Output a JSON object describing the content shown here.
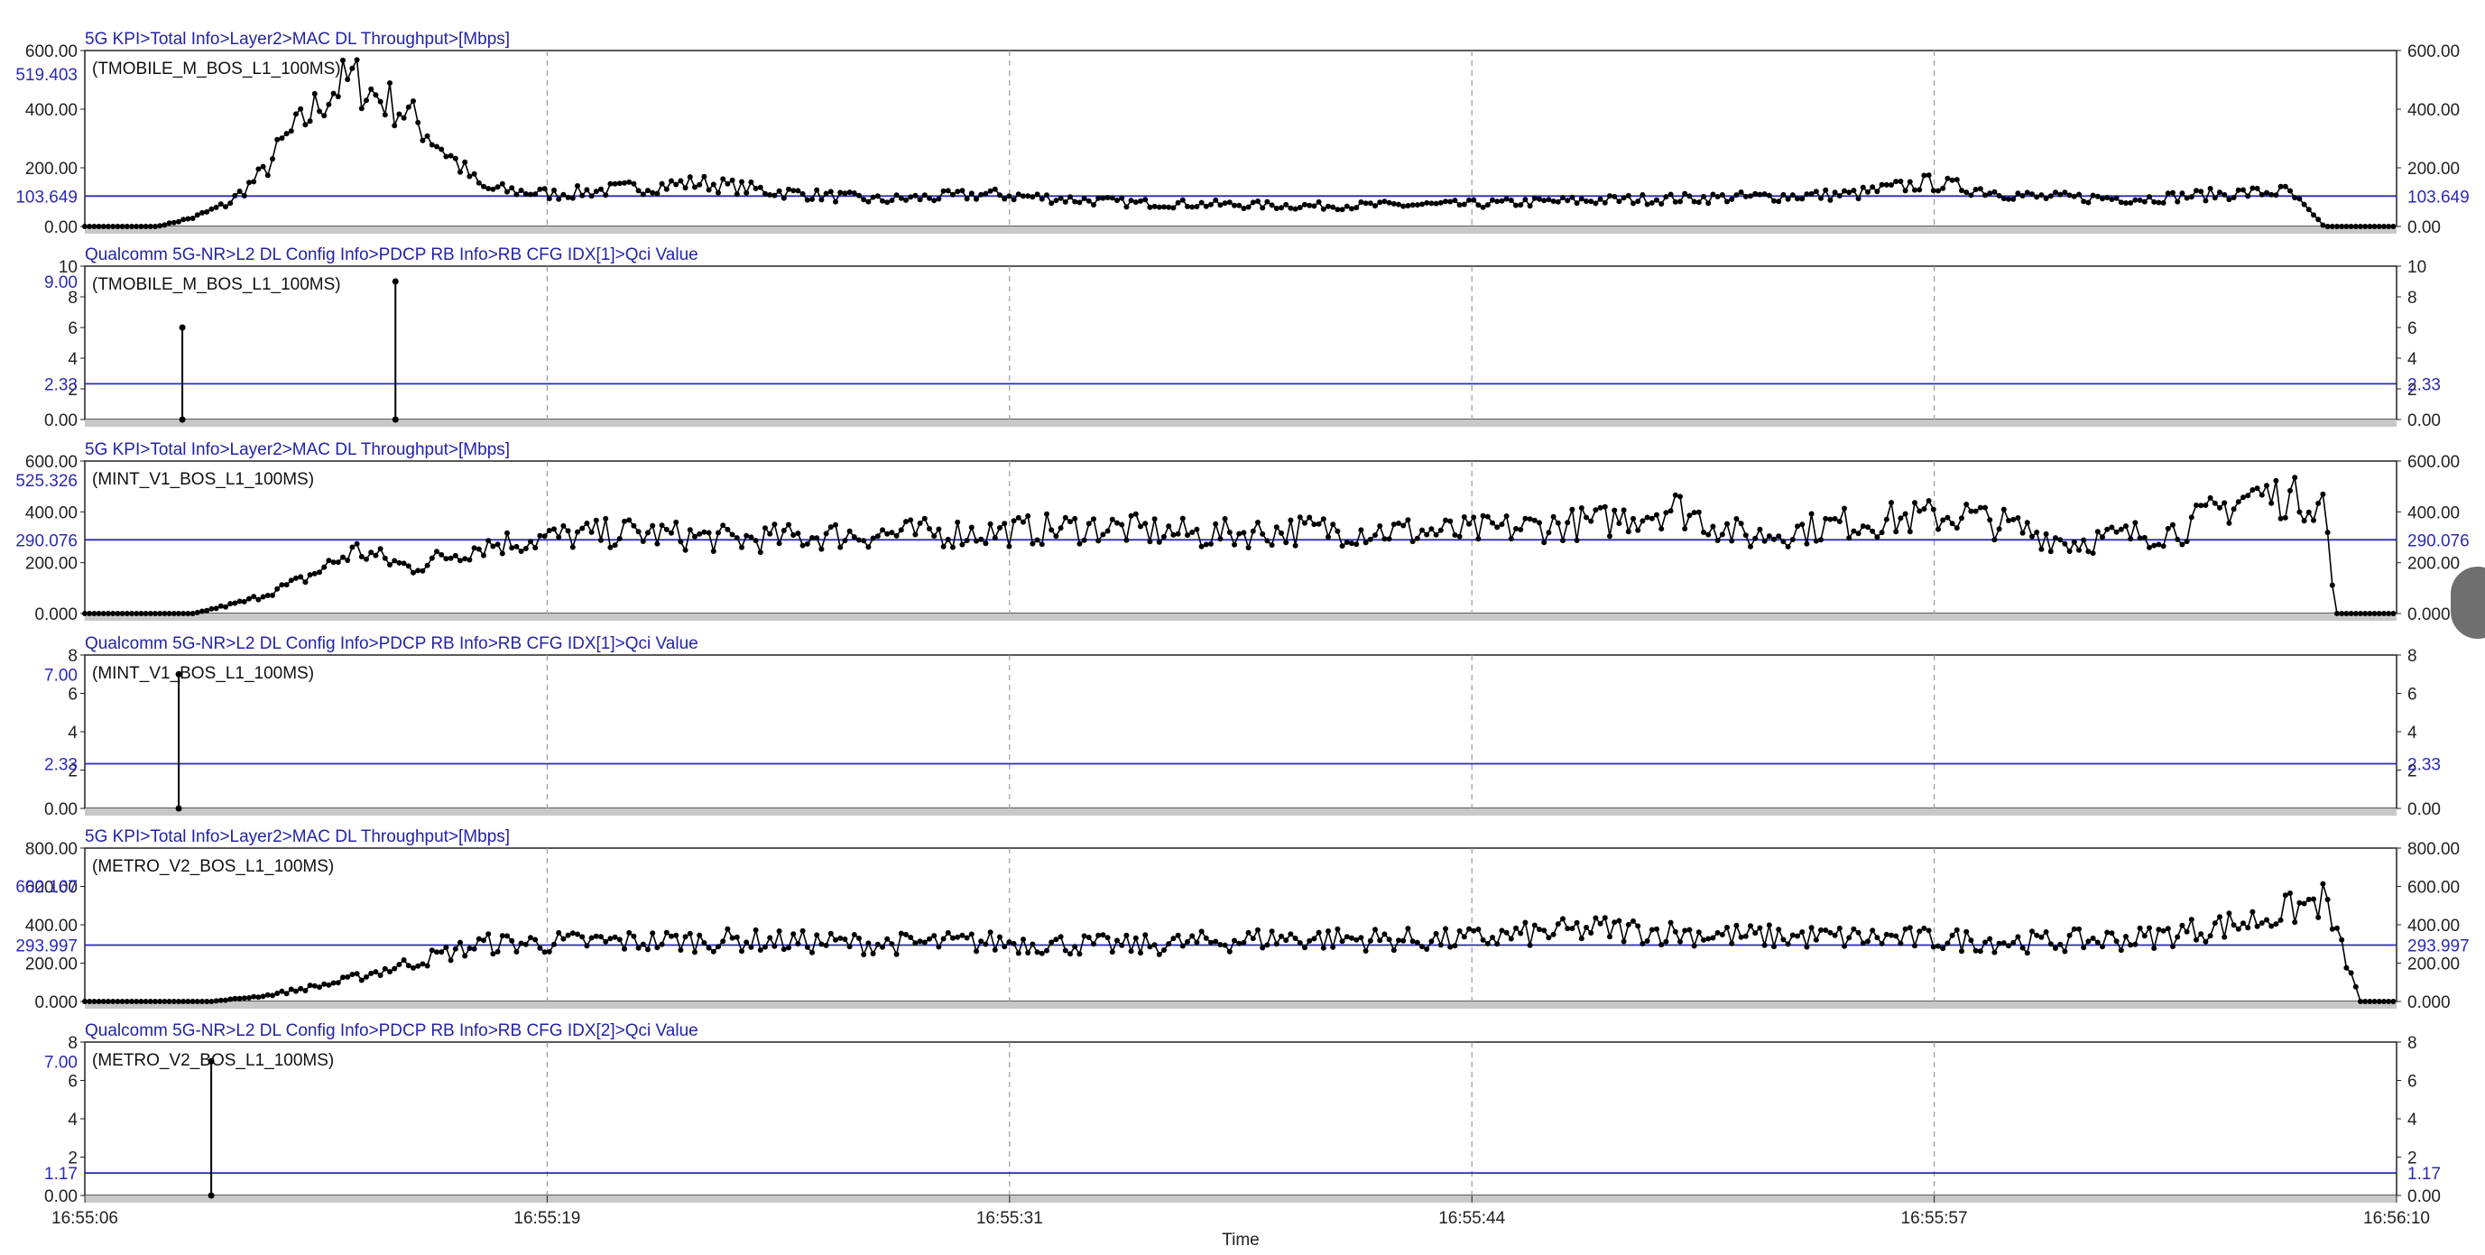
{
  "x_axis": {
    "ticks": [
      "16:55:06",
      "16:55:19",
      "16:55:31",
      "16:55:44",
      "16:55:57",
      "16:56:10"
    ],
    "label": "Time"
  },
  "colors": {
    "trace": "#000000",
    "reference_line": "#2a2ab8",
    "header_text": "#2323a8",
    "grid": "#9a9a9a",
    "baseline": "#c8c8c8"
  },
  "chart_data": [
    {
      "type": "line",
      "title": "5G KPI>Total Info>Layer2>MAC DL Throughput>[Mbps]",
      "xlabel": "Time",
      "ylabel": "Mbps",
      "ylim": [
        0,
        600
      ],
      "yticks": [
        "0.00",
        "200.00",
        "400.00",
        "600.00"
      ],
      "grid": true,
      "series": [
        {
          "name": "(TMOBILE_M_BOS_L1_100MS)",
          "x": [
            "16:55:06",
            "16:55:07.5",
            "16:55:08",
            "16:55:09",
            "16:55:10",
            "16:55:11",
            "16:55:11.5",
            "16:55:12",
            "16:55:12.5",
            "16:55:13",
            "16:55:13.5",
            "16:55:14",
            "16:55:14.5",
            "16:55:15",
            "16:55:17",
            "16:55:19",
            "16:55:21",
            "16:55:23",
            "16:55:25",
            "16:55:28",
            "16:55:31",
            "16:55:35",
            "16:55:40",
            "16:55:44",
            "16:55:48",
            "16:55:52",
            "16:55:55",
            "16:55:57",
            "16:56:00",
            "16:56:03",
            "16:56:05",
            "16:56:07",
            "16:56:08",
            "16:56:10"
          ],
          "y": [
            0,
            0,
            0,
            30,
            80,
            190,
            290,
            350,
            420,
            480,
            500,
            450,
            420,
            380,
            130,
            110,
            130,
            150,
            120,
            90,
            110,
            80,
            70,
            75,
            90,
            100,
            110,
            150,
            100,
            95,
            110,
            120,
            0,
            0
          ]
        }
      ],
      "reference_values": [
        "519.403",
        "103.649"
      ]
    },
    {
      "type": "line",
      "title": "Qualcomm 5G-NR>L2 DL Config Info>PDCP RB Info>RB CFG IDX[1]>Qci Value",
      "ylim": [
        0,
        10
      ],
      "yticks": [
        "0.00",
        "2",
        "4",
        "6",
        "8",
        "10"
      ],
      "grid": true,
      "series": [
        {
          "name": "(TMOBILE_M_BOS_L1_100MS)",
          "x": [
            "16:55:08.7",
            "16:55:14.6"
          ],
          "y": [
            6,
            9
          ]
        }
      ],
      "reference_values": [
        "9.00",
        "2.33"
      ]
    },
    {
      "type": "line",
      "title": "5G KPI>Total Info>Layer2>MAC DL Throughput>[Mbps]",
      "xlabel": "Time",
      "ylabel": "Mbps",
      "ylim": [
        0,
        600
      ],
      "yticks": [
        "0.000",
        "200.00",
        "400.00",
        "600.00"
      ],
      "grid": true,
      "series": [
        {
          "name": "(MINT_V1_BOS_L1_100MS)",
          "x": [
            "16:55:06",
            "16:55:07.5",
            "16:55:09",
            "16:55:10.5",
            "16:55:12",
            "16:55:13.5",
            "16:55:15",
            "16:55:17",
            "16:55:19",
            "16:55:21",
            "16:55:24",
            "16:55:27",
            "16:55:31",
            "16:55:34",
            "16:55:37",
            "16:55:40",
            "16:55:44",
            "16:55:48",
            "16:55:50",
            "16:55:52",
            "16:55:55",
            "16:55:58",
            "16:56:01",
            "16:56:04",
            "16:56:06",
            "16:56:08",
            "16:56:08.3",
            "16:56:10"
          ],
          "y": [
            0,
            0,
            0,
            50,
            130,
            250,
            180,
            270,
            300,
            320,
            290,
            310,
            320,
            340,
            310,
            330,
            320,
            360,
            420,
            300,
            360,
            390,
            280,
            330,
            470,
            440,
            0,
            0
          ]
        }
      ],
      "reference_values": [
        "525.326",
        "290.076"
      ]
    },
    {
      "type": "line",
      "title": "Qualcomm 5G-NR>L2 DL Config Info>PDCP RB Info>RB CFG IDX[1]>Qci Value",
      "ylim": [
        0,
        8
      ],
      "yticks": [
        "0.00",
        "2",
        "4",
        "6",
        "8"
      ],
      "grid": true,
      "series": [
        {
          "name": "(MINT_V1_BOS_L1_100MS)",
          "x": [
            "16:55:08.6"
          ],
          "y": [
            7
          ]
        }
      ],
      "reference_values": [
        "7.00",
        "2.33"
      ]
    },
    {
      "type": "line",
      "title": "5G KPI>Total Info>Layer2>MAC DL Throughput>[Mbps]",
      "xlabel": "Time",
      "ylabel": "Mbps",
      "ylim": [
        0,
        800
      ],
      "yticks": [
        "0.000",
        "200.00",
        "400.00",
        "600.00",
        "800.00"
      ],
      "grid": true,
      "series": [
        {
          "name": "(METRO_V2_BOS_L1_100MS)",
          "x": [
            "16:55:06",
            "16:55:08",
            "16:55:09.5",
            "16:55:11",
            "16:55:13",
            "16:55:15",
            "16:55:17",
            "16:55:20",
            "16:55:24",
            "16:55:28",
            "16:55:31",
            "16:55:35",
            "16:55:39",
            "16:55:44",
            "16:55:48",
            "16:55:52",
            "16:55:56",
            "16:56:00",
            "16:56:03",
            "16:56:06",
            "16:56:08",
            "16:56:09",
            "16:56:10"
          ],
          "y": [
            0,
            0,
            0,
            30,
            100,
            200,
            300,
            310,
            320,
            300,
            310,
            290,
            330,
            320,
            380,
            340,
            330,
            310,
            330,
            420,
            530,
            0,
            0
          ]
        }
      ],
      "reference_values": [
        "602.167",
        "293.997"
      ]
    },
    {
      "type": "line",
      "title": "Qualcomm 5G-NR>L2 DL Config Info>PDCP RB Info>RB CFG IDX[2]>Qci Value",
      "ylim": [
        0,
        8
      ],
      "yticks": [
        "0.00",
        "2",
        "4",
        "6",
        "8"
      ],
      "grid": true,
      "series": [
        {
          "name": "(METRO_V2_BOS_L1_100MS)",
          "x": [
            "16:55:09.5"
          ],
          "y": [
            7
          ]
        }
      ],
      "reference_values": [
        "7.00",
        "1.17"
      ]
    }
  ]
}
